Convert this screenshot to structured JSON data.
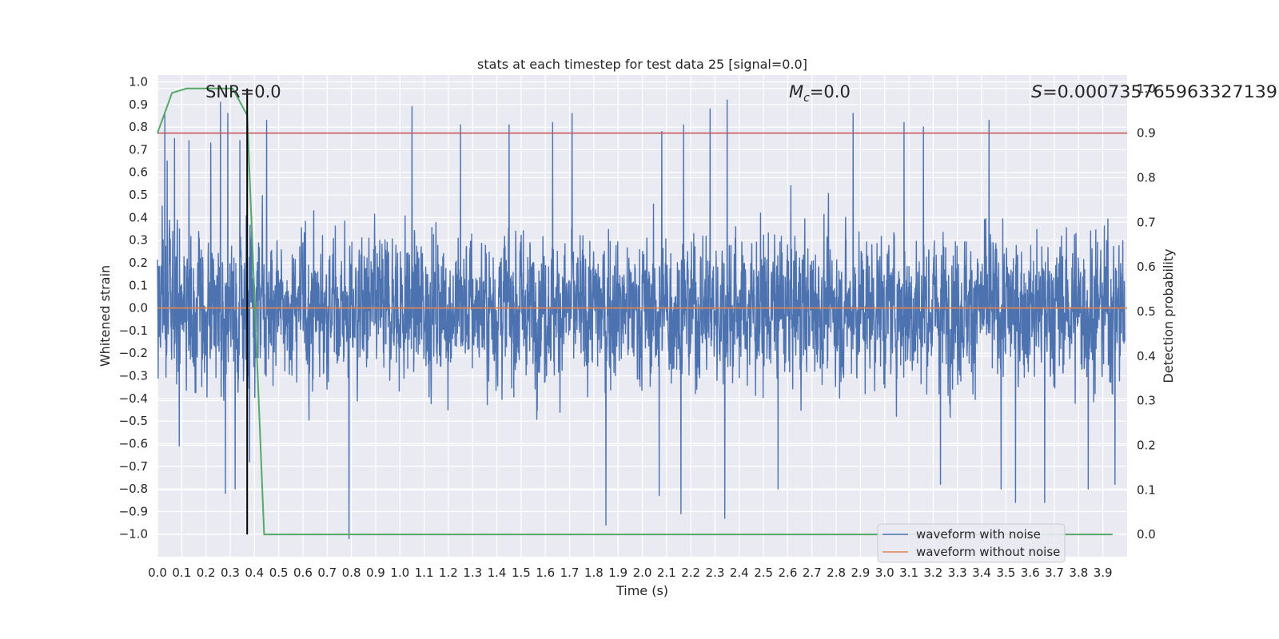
{
  "chart_data": {
    "type": "line",
    "title": "stats at each timestep for test data 25 [signal=0.0]",
    "xlabel": "Time (s)",
    "ylabel_left": "Whitened strain",
    "ylabel_right": "Detection probability",
    "xlim": [
      0.0,
      4.0
    ],
    "ylim_left": [
      -1.1,
      1.03
    ],
    "ylim_right": [
      -0.05,
      1.03
    ],
    "x_ticks": [
      "0.0",
      "0.1",
      "0.2",
      "0.3",
      "0.4",
      "0.5",
      "0.6",
      "0.7",
      "0.8",
      "0.9",
      "1.0",
      "1.1",
      "1.2",
      "1.3",
      "1.4",
      "1.5",
      "1.6",
      "1.7",
      "1.8",
      "1.9",
      "2.0",
      "2.1",
      "2.2",
      "2.3",
      "2.4",
      "2.5",
      "2.6",
      "2.7",
      "2.8",
      "2.9",
      "3.0",
      "3.1",
      "3.2",
      "3.3",
      "3.4",
      "3.5",
      "3.6",
      "3.7",
      "3.8",
      "3.9"
    ],
    "y_ticks_left": [
      "1.0",
      "0.9",
      "0.8",
      "0.7",
      "0.6",
      "0.5",
      "0.4",
      "0.3",
      "0.2",
      "0.1",
      "0.0",
      "−0.1",
      "−0.2",
      "−0.3",
      "−0.4",
      "−0.5",
      "−0.6",
      "−0.7",
      "−0.8",
      "−0.9",
      "−1.0"
    ],
    "y_ticks_right": [
      "1.0",
      "0.9",
      "0.8",
      "0.7",
      "0.6",
      "0.5",
      "0.4",
      "0.3",
      "0.2",
      "0.1",
      "0.0"
    ],
    "annotations": {
      "snr": "SNR=0.0",
      "mc_symbol": "M",
      "mc_sub": "c",
      "mc_value": "=0.0",
      "s_symbol": "S",
      "s_value": "=0.000735765963327139"
    },
    "threshold_right": 0.9,
    "marker_time": 0.37,
    "series": [
      {
        "name": "waveform with noise",
        "color": "#4c72b0",
        "axis": "left",
        "kind": "noise",
        "sample_rate_hz": 1024,
        "envelope": 0.55,
        "peaks": [
          {
            "x": 0.02,
            "y": 0.45
          },
          {
            "x": 0.03,
            "y": 0.86
          },
          {
            "x": 0.04,
            "y": 0.65
          },
          {
            "x": 0.07,
            "y": 0.75
          },
          {
            "x": 0.13,
            "y": 0.74
          },
          {
            "x": 0.22,
            "y": 0.73
          },
          {
            "x": 0.26,
            "y": 0.91
          },
          {
            "x": 0.29,
            "y": 0.86
          },
          {
            "x": 0.34,
            "y": 0.74
          },
          {
            "x": 0.45,
            "y": 0.83
          },
          {
            "x": 1.05,
            "y": 0.89
          },
          {
            "x": 1.25,
            "y": 0.81
          },
          {
            "x": 1.45,
            "y": 0.81
          },
          {
            "x": 1.63,
            "y": 0.82
          },
          {
            "x": 1.71,
            "y": 0.86
          },
          {
            "x": 2.08,
            "y": 0.78
          },
          {
            "x": 2.17,
            "y": 0.81
          },
          {
            "x": 2.28,
            "y": 0.88
          },
          {
            "x": 2.35,
            "y": 0.92
          },
          {
            "x": 2.87,
            "y": 0.86
          },
          {
            "x": 3.08,
            "y": 0.82
          },
          {
            "x": 3.16,
            "y": 0.8
          },
          {
            "x": 3.43,
            "y": 0.83
          },
          {
            "x": 3.84,
            "y": 0.82
          },
          {
            "x": 0.09,
            "y": -0.61
          },
          {
            "x": 0.28,
            "y": -0.82
          },
          {
            "x": 0.32,
            "y": -0.8
          },
          {
            "x": 0.38,
            "y": -0.68
          },
          {
            "x": 0.79,
            "y": -1.02
          },
          {
            "x": 1.85,
            "y": -0.96
          },
          {
            "x": 2.07,
            "y": -0.83
          },
          {
            "x": 2.16,
            "y": -0.91
          },
          {
            "x": 2.34,
            "y": -0.93
          },
          {
            "x": 2.56,
            "y": -0.8
          },
          {
            "x": 3.23,
            "y": -0.78
          },
          {
            "x": 3.48,
            "y": -0.8
          },
          {
            "x": 3.54,
            "y": -0.86
          },
          {
            "x": 3.66,
            "y": -0.86
          },
          {
            "x": 3.84,
            "y": -0.8
          },
          {
            "x": 3.95,
            "y": -0.78
          }
        ]
      },
      {
        "name": "waveform without noise",
        "color": "#dd8452",
        "axis": "left",
        "x": [
          0.0,
          4.0
        ],
        "y": [
          0.0,
          0.0
        ]
      },
      {
        "name": "",
        "color": "#55a868",
        "axis": "right",
        "x": [
          0.0,
          0.06,
          0.12,
          0.19,
          0.25,
          0.31,
          0.37,
          0.44,
          0.5,
          0.75,
          1.0,
          1.5,
          2.0,
          2.5,
          3.0,
          3.5,
          3.94
        ],
        "y": [
          0.9,
          0.99,
          1.0,
          1.0,
          1.0,
          1.0,
          0.94,
          0.0,
          0.0,
          0.0,
          0.0,
          0.0,
          0.0,
          0.0,
          0.0,
          0.0,
          0.0
        ]
      }
    ],
    "legend": {
      "placement": "lower-right",
      "entries": [
        "waveform with noise",
        "waveform without noise"
      ]
    },
    "grid": true,
    "colors": {
      "background": "#eaeaf2",
      "grid": "#ffffff",
      "threshold": "#c44e52",
      "marker": "#000000"
    }
  }
}
